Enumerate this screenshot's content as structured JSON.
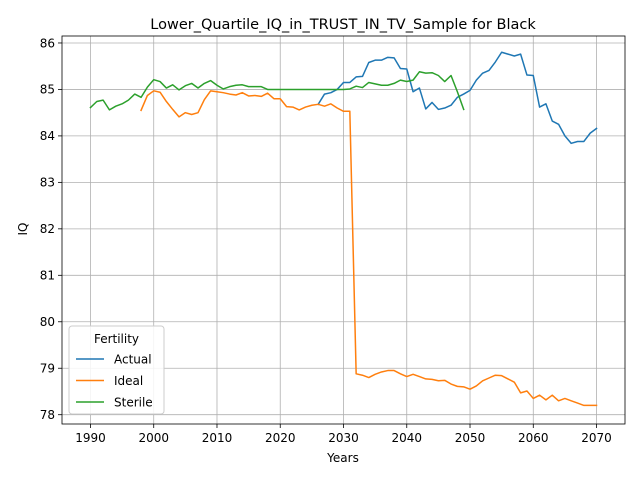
{
  "chart_data": {
    "type": "line",
    "title": "Lower_Quartile_IQ_in_TRUST_IN_TV_Sample for Black",
    "xlabel": "Years",
    "ylabel": "IQ",
    "xlim": [
      1985.5,
      2074.5
    ],
    "ylim": [
      77.8,
      86.15
    ],
    "xticks": [
      1990,
      2000,
      2010,
      2020,
      2030,
      2040,
      2050,
      2060,
      2070
    ],
    "yticks": [
      78,
      79,
      80,
      81,
      82,
      83,
      84,
      85,
      86
    ],
    "grid": true,
    "legend": {
      "title": "Fertility",
      "placement": "lower left"
    },
    "series": [
      {
        "name": "Actual",
        "color": "#1f77b4",
        "points": [
          [
            2026,
            84.68
          ],
          [
            2027,
            84.9
          ],
          [
            2028,
            84.93
          ],
          [
            2029,
            85.0
          ],
          [
            2030,
            85.15
          ],
          [
            2031,
            85.15
          ],
          [
            2032,
            85.27
          ],
          [
            2033,
            85.28
          ],
          [
            2034,
            85.58
          ],
          [
            2035,
            85.63
          ],
          [
            2036,
            85.63
          ],
          [
            2037,
            85.69
          ],
          [
            2038,
            85.68
          ],
          [
            2039,
            85.45
          ],
          [
            2040,
            85.44
          ],
          [
            2041,
            84.95
          ],
          [
            2042,
            85.03
          ],
          [
            2043,
            84.58
          ],
          [
            2044,
            84.72
          ],
          [
            2045,
            84.57
          ],
          [
            2046,
            84.6
          ],
          [
            2047,
            84.66
          ],
          [
            2048,
            84.83
          ],
          [
            2049,
            84.9
          ],
          [
            2050,
            84.98
          ],
          [
            2051,
            85.2
          ],
          [
            2052,
            85.35
          ],
          [
            2053,
            85.41
          ],
          [
            2054,
            85.59
          ],
          [
            2055,
            85.8
          ],
          [
            2056,
            85.76
          ],
          [
            2057,
            85.72
          ],
          [
            2058,
            85.76
          ],
          [
            2059,
            85.31
          ],
          [
            2060,
            85.3
          ],
          [
            2061,
            84.62
          ],
          [
            2062,
            84.69
          ],
          [
            2063,
            84.32
          ],
          [
            2064,
            84.25
          ],
          [
            2065,
            84.0
          ],
          [
            2066,
            83.84
          ],
          [
            2067,
            83.88
          ],
          [
            2068,
            83.88
          ],
          [
            2069,
            84.06
          ],
          [
            2070,
            84.16
          ]
        ]
      },
      {
        "name": "Ideal",
        "color": "#ff7f0e",
        "points": [
          [
            1998,
            84.55
          ],
          [
            1999,
            84.87
          ],
          [
            2000,
            84.97
          ],
          [
            2001,
            84.94
          ],
          [
            2002,
            84.74
          ],
          [
            2003,
            84.57
          ],
          [
            2004,
            84.41
          ],
          [
            2005,
            84.5
          ],
          [
            2006,
            84.46
          ],
          [
            2007,
            84.5
          ],
          [
            2008,
            84.78
          ],
          [
            2009,
            84.97
          ],
          [
            2010,
            84.95
          ],
          [
            2011,
            84.93
          ],
          [
            2012,
            84.9
          ],
          [
            2013,
            84.88
          ],
          [
            2014,
            84.93
          ],
          [
            2015,
            84.86
          ],
          [
            2016,
            84.87
          ],
          [
            2017,
            84.85
          ],
          [
            2018,
            84.92
          ],
          [
            2019,
            84.8
          ],
          [
            2020,
            84.8
          ],
          [
            2021,
            84.63
          ],
          [
            2022,
            84.62
          ],
          [
            2023,
            84.56
          ],
          [
            2024,
            84.62
          ],
          [
            2025,
            84.66
          ],
          [
            2026,
            84.68
          ],
          [
            2027,
            84.64
          ],
          [
            2028,
            84.69
          ],
          [
            2029,
            84.6
          ],
          [
            2030,
            84.53
          ],
          [
            2031,
            84.53
          ],
          [
            2032,
            78.88
          ],
          [
            2033,
            78.85
          ],
          [
            2034,
            78.8
          ],
          [
            2035,
            78.87
          ],
          [
            2036,
            78.92
          ],
          [
            2037,
            78.95
          ],
          [
            2038,
            78.95
          ],
          [
            2039,
            78.88
          ],
          [
            2040,
            78.82
          ],
          [
            2041,
            78.87
          ],
          [
            2042,
            78.82
          ],
          [
            2043,
            78.77
          ],
          [
            2044,
            78.76
          ],
          [
            2045,
            78.73
          ],
          [
            2046,
            78.74
          ],
          [
            2047,
            78.66
          ],
          [
            2048,
            78.61
          ],
          [
            2049,
            78.6
          ],
          [
            2050,
            78.55
          ],
          [
            2051,
            78.62
          ],
          [
            2052,
            78.73
          ],
          [
            2053,
            78.79
          ],
          [
            2054,
            78.85
          ],
          [
            2055,
            78.84
          ],
          [
            2056,
            78.77
          ],
          [
            2057,
            78.7
          ],
          [
            2058,
            78.47
          ],
          [
            2059,
            78.51
          ],
          [
            2060,
            78.35
          ],
          [
            2061,
            78.42
          ],
          [
            2062,
            78.32
          ],
          [
            2063,
            78.42
          ],
          [
            2064,
            78.3
          ],
          [
            2065,
            78.35
          ],
          [
            2066,
            78.3
          ],
          [
            2067,
            78.25
          ],
          [
            2068,
            78.2
          ],
          [
            2069,
            78.2
          ],
          [
            2070,
            78.2
          ]
        ]
      },
      {
        "name": "Sterile",
        "color": "#2ca02c",
        "points": [
          [
            1990,
            84.61
          ],
          [
            1991,
            84.74
          ],
          [
            1992,
            84.77
          ],
          [
            1993,
            84.56
          ],
          [
            1994,
            84.64
          ],
          [
            1995,
            84.69
          ],
          [
            1996,
            84.77
          ],
          [
            1997,
            84.9
          ],
          [
            1998,
            84.83
          ],
          [
            1999,
            85.05
          ],
          [
            2000,
            85.21
          ],
          [
            2001,
            85.17
          ],
          [
            2002,
            85.03
          ],
          [
            2003,
            85.1
          ],
          [
            2004,
            84.99
          ],
          [
            2005,
            85.08
          ],
          [
            2006,
            85.13
          ],
          [
            2007,
            85.03
          ],
          [
            2008,
            85.13
          ],
          [
            2009,
            85.19
          ],
          [
            2010,
            85.09
          ],
          [
            2011,
            85.01
          ],
          [
            2012,
            85.06
          ],
          [
            2013,
            85.09
          ],
          [
            2014,
            85.1
          ],
          [
            2015,
            85.06
          ],
          [
            2016,
            85.06
          ],
          [
            2017,
            85.06
          ],
          [
            2018,
            85.0
          ],
          [
            2019,
            85.0
          ],
          [
            2020,
            85.0
          ],
          [
            2021,
            85.0
          ],
          [
            2022,
            85.0
          ],
          [
            2023,
            85.0
          ],
          [
            2024,
            85.0
          ],
          [
            2025,
            85.0
          ],
          [
            2026,
            85.0
          ],
          [
            2027,
            85.0
          ],
          [
            2028,
            85.0
          ],
          [
            2029,
            85.0
          ],
          [
            2030,
            85.0
          ],
          [
            2031,
            85.01
          ],
          [
            2032,
            85.07
          ],
          [
            2033,
            85.04
          ],
          [
            2034,
            85.15
          ],
          [
            2035,
            85.12
          ],
          [
            2036,
            85.09
          ],
          [
            2037,
            85.09
          ],
          [
            2038,
            85.13
          ],
          [
            2039,
            85.2
          ],
          [
            2040,
            85.17
          ],
          [
            2041,
            85.2
          ],
          [
            2042,
            85.38
          ],
          [
            2043,
            85.35
          ],
          [
            2044,
            85.36
          ],
          [
            2045,
            85.3
          ],
          [
            2046,
            85.17
          ],
          [
            2047,
            85.3
          ],
          [
            2048,
            84.95
          ],
          [
            2049,
            84.57
          ]
        ]
      }
    ]
  }
}
